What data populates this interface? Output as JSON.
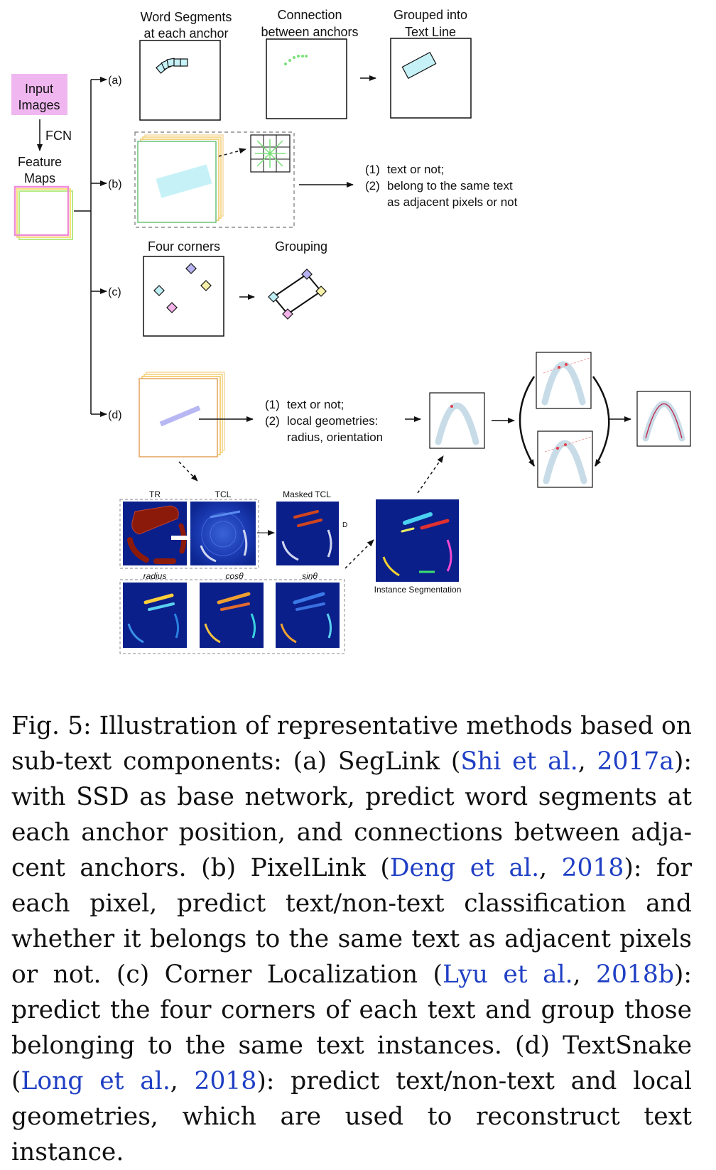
{
  "figure": {
    "input_label": [
      "Input",
      "Images"
    ],
    "fcn_label": "FCN",
    "feature_label": [
      "Feature",
      "Maps"
    ],
    "branches": [
      "(a)",
      "(b)",
      "(c)",
      "(d)"
    ],
    "a": {
      "col1": [
        "Word Segments",
        "at each anchor"
      ],
      "col2": [
        "Connection",
        "between anchors"
      ],
      "col3": [
        "Grouped into",
        "Text Line"
      ]
    },
    "b": {
      "out": [
        "(1)",
        "text or not;",
        "(2)",
        "belong to the same text",
        "as adjacent pixels or not"
      ]
    },
    "c": {
      "col1": "Four corners",
      "col2": "Grouping"
    },
    "d": {
      "out": [
        "(1)",
        "text or not;",
        "(2)",
        "local geometries:",
        "radius, orientation"
      ],
      "maps": [
        "TR",
        "TCL",
        "Masked TCL",
        "radius",
        "cosθ",
        "sinθ",
        "Instance Segmentation"
      ],
      "small_d": "D"
    }
  },
  "caption": {
    "fig_label": "Fig. 5:",
    "p1": " Illustration of representative methods based on sub-text components: (a) SegLink (",
    "c1_author": "Shi et al.",
    "c1_sep": ", ",
    "c1_year": "2017a",
    "p2": "): with SSD as base network, predict word segments at each anchor position, and connections between adja-cent anchors. (b) PixelLink (",
    "c2_author": "Deng et al.",
    "c2_sep": ", ",
    "c2_year": "2018",
    "p3": "): for each pixel, predict text/non-text classification and whether it belongs to the same text as adjacent pixels or not. (c) Corner Localization (",
    "c3_author": "Lyu et al.",
    "c3_sep": ", ",
    "c3_year": "2018b",
    "p4": "): predict the four corners of each text and group those belonging to the same text instances. (d) TextSnake (",
    "c4_author": "Long et al.",
    "c4_sep": ", ",
    "c4_year": "2018",
    "p5": "): predict text/non-text and local geometries, which are used to reconstruct text instance."
  },
  "colors": {
    "input_box": "#f0b6f0",
    "cite": "#1f3fc4",
    "heat_bg": "#0a1f8a",
    "tr_red": "#8b1a0a"
  }
}
